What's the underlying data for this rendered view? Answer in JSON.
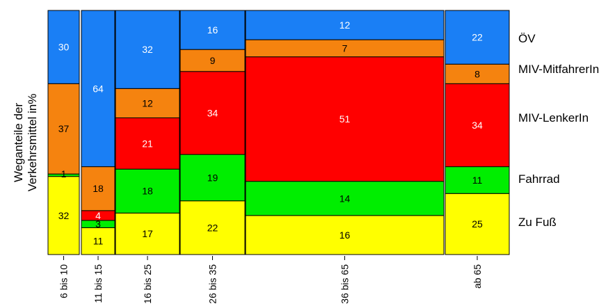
{
  "chart_data": {
    "type": "mosaic",
    "ylabel": [
      "Weganteile der",
      "Verkehrsmittel in%"
    ],
    "categories": [
      "6 bis 10",
      "11 bis 15",
      "16 bis 25",
      "26 bis 35",
      "36 bis 65",
      "ab 65"
    ],
    "series": [
      {
        "name": "Zu Fuß",
        "color": "#ffff00",
        "values": [
          32,
          11,
          17,
          22,
          16,
          25
        ],
        "labels": [
          "32",
          "11",
          "17",
          "22",
          "16",
          "25"
        ]
      },
      {
        "name": "Fahrrad",
        "color": "#00ee00",
        "values": [
          1,
          3,
          18,
          19,
          14,
          11
        ],
        "labels": [
          "",
          "3",
          "18",
          "19",
          "14",
          "11"
        ]
      },
      {
        "name": "MIV-LenkerIn",
        "color": "#ff0000",
        "values": [
          0,
          4,
          21,
          34,
          51,
          34
        ],
        "labels": [
          "",
          "4",
          "21",
          "34",
          "51",
          "34"
        ]
      },
      {
        "name": "MIV-MitfahrerIn",
        "color": "#f5830f",
        "values": [
          37,
          18,
          12,
          9,
          7,
          8
        ],
        "labels": [
          "37",
          "18",
          "12",
          "9",
          "7",
          "8"
        ]
      },
      {
        "name": "ÖV",
        "color": "#1a7ff5",
        "values": [
          30,
          64,
          32,
          16,
          12,
          22
        ],
        "labels": [
          "30",
          "64",
          "32",
          "16",
          "12",
          "22"
        ]
      }
    ],
    "extra_labels": [
      {
        "category": "6 bis 10",
        "text": "1"
      }
    ],
    "legend": [
      "ÖV",
      "MIV-MitfahrerIn",
      "MIV-LenkerIn",
      "Fahrrad",
      "Zu Fuß"
    ],
    "legend_position": "right",
    "grid": false
  }
}
